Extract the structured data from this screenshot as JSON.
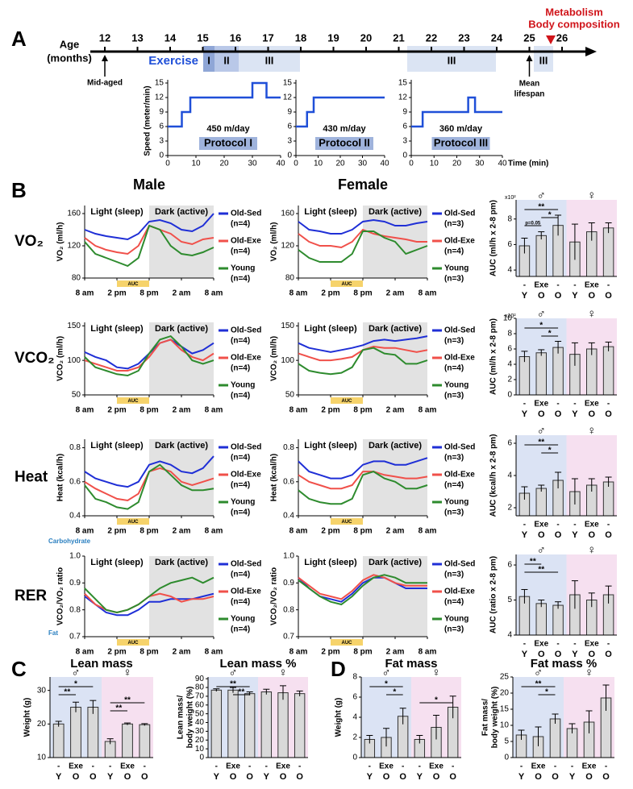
{
  "panel_a": {
    "label": "A",
    "age_label": [
      "Age",
      "(months)"
    ],
    "ages": [
      12,
      13,
      14,
      15,
      16,
      17,
      18,
      19,
      20,
      21,
      22,
      23,
      24,
      25,
      26
    ],
    "mid_aged": "Mid-aged",
    "exercise": "Exercise",
    "phases": [
      "I",
      "II",
      "III",
      "III",
      "III"
    ],
    "mean_lifespan": [
      "Mean",
      "lifespan"
    ],
    "endpoint": [
      "Metabolism",
      "Body composition"
    ],
    "protocols": {
      "ylabel": "Speed (meter/min)",
      "xlabel": "Time (min)",
      "ylim": [
        0,
        15
      ],
      "yticks": [
        0,
        3,
        6,
        9,
        12,
        15
      ],
      "xlim": [
        0,
        40
      ],
      "xticks": [
        0,
        10,
        20,
        30,
        40
      ],
      "items": [
        {
          "distance": "450 m/day",
          "name": "Protocol I",
          "x": [
            0,
            5,
            5,
            8,
            8,
            30,
            30,
            35,
            35,
            40
          ],
          "y": [
            6,
            6,
            9,
            9,
            12,
            12,
            15,
            15,
            12,
            12
          ]
        },
        {
          "distance": "430 m/day",
          "name": "Protocol II",
          "x": [
            0,
            5,
            5,
            8,
            8,
            40
          ],
          "y": [
            6,
            6,
            9,
            9,
            12,
            12
          ]
        },
        {
          "distance": "360 m/day",
          "name": "Protocol III",
          "x": [
            0,
            5,
            5,
            25,
            25,
            28,
            28,
            40
          ],
          "y": [
            6,
            6,
            9,
            9,
            12,
            12,
            9,
            9
          ]
        }
      ]
    }
  },
  "panel_b": {
    "label": "B",
    "sexes": [
      "Male",
      "Female"
    ],
    "periods": [
      "Light (sleep)",
      "Dark (active)"
    ],
    "auc": "AUC",
    "xticks": [
      {
        "value": 0,
        "label": "8 am"
      },
      {
        "value": 6,
        "label": "2 pm"
      },
      {
        "value": 12,
        "label": "8 pm"
      },
      {
        "value": 18,
        "label": "2 am"
      },
      {
        "value": 24,
        "label": "8 am"
      }
    ],
    "hours": [
      0,
      2,
      4,
      6,
      8,
      10,
      12,
      14,
      16,
      18,
      20,
      22,
      24
    ],
    "series_names": [
      "Old-Sed",
      "Old-Exe",
      "Young"
    ],
    "colors": [
      "#1f2fd6",
      "#f0504a",
      "#2e8b2e"
    ],
    "rer_notes": [
      "Carbohydrate",
      "Fat"
    ],
    "rows": [
      {
        "name": "VO₂",
        "ylabel": "VO₂ (ml/h)",
        "ylim": [
          80,
          170
        ],
        "yticks": [
          80,
          120,
          160
        ],
        "male": {
          "n": [
            "(n=4)",
            "(n=4)",
            "(n=4)"
          ],
          "series": [
            [
              140,
              135,
              132,
              130,
              128,
              135,
              150,
              152,
              148,
              140,
              138,
              145,
              160
            ],
            [
              130,
              120,
              115,
              112,
              110,
              120,
              145,
              140,
              135,
              125,
              122,
              128,
              130
            ],
            [
              125,
              110,
              105,
              100,
              95,
              105,
              145,
              140,
              120,
              110,
              108,
              112,
              118
            ]
          ]
        },
        "female": {
          "n": [
            "(n=3)",
            "(n=4)",
            "(n=3)"
          ],
          "series": [
            [
              150,
              140,
              138,
              135,
              135,
              140,
              150,
              152,
              150,
              145,
              145,
              148,
              150
            ],
            [
              135,
              125,
              120,
              120,
              118,
              125,
              140,
              135,
              132,
              130,
              128,
              125,
              125
            ],
            [
              115,
              105,
              100,
              100,
              100,
              110,
              138,
              138,
              130,
              125,
              110,
              115,
              120
            ]
          ]
        },
        "auc_chart": {
          "ylabel": "AUC (ml/h x 2-8 pm)",
          "multiplier": "x10²",
          "ylim": [
            3.5,
            9.5
          ],
          "yticks": [
            4,
            6,
            8
          ],
          "values": [
            5.9,
            6.7,
            7.5,
            6.2,
            7.0,
            7.3
          ],
          "errors": [
            0.6,
            0.3,
            0.8,
            1.4,
            0.7,
            0.4
          ],
          "sig": [
            {
              "pair": [
                0,
                2
              ],
              "label": "**"
            },
            {
              "pair": [
                1,
                2
              ],
              "label": "*"
            },
            {
              "pair": [
                0,
                1
              ],
              "label": "p=0.05"
            }
          ]
        }
      },
      {
        "name": "VCO₂",
        "ylabel": "VCO₂ (ml/h)",
        "ylim": [
          50,
          155
        ],
        "yticks": [
          50,
          100,
          150
        ],
        "male": {
          "n": [
            "(n=4)",
            "(n=4)",
            "(n=4)"
          ],
          "series": [
            [
              112,
              105,
              100,
              90,
              88,
              95,
              110,
              125,
              130,
              120,
              110,
              115,
              125
            ],
            [
              100,
              95,
              90,
              85,
              85,
              90,
              105,
              125,
              130,
              115,
              105,
              100,
              110
            ],
            [
              105,
              90,
              85,
              80,
              78,
              85,
              110,
              130,
              135,
              120,
              100,
              95,
              100
            ]
          ]
        },
        "female": {
          "n": [
            "(n=3)",
            "(n=4)",
            "(n=3)"
          ],
          "series": [
            [
              125,
              118,
              115,
              112,
              115,
              118,
              122,
              128,
              130,
              128,
              130,
              132,
              135
            ],
            [
              110,
              105,
              100,
              100,
              102,
              105,
              115,
              120,
              118,
              118,
              115,
              112,
              115
            ],
            [
              95,
              85,
              82,
              80,
              82,
              90,
              115,
              118,
              110,
              108,
              95,
              95,
              100
            ]
          ]
        },
        "auc_chart": {
          "ylabel": "AUC (ml/h x 2-8 pm)",
          "multiplier": "x10²",
          "ylim": [
            0,
            10
          ],
          "yticks": [
            0,
            2,
            4,
            6,
            8,
            10
          ],
          "values": [
            5.0,
            5.5,
            6.2,
            5.3,
            6.0,
            6.3
          ],
          "errors": [
            0.7,
            0.4,
            0.8,
            1.5,
            0.8,
            0.6
          ],
          "sig": [
            {
              "pair": [
                0,
                2
              ],
              "label": "*"
            },
            {
              "pair": [
                1,
                2
              ],
              "label": "*"
            }
          ]
        }
      },
      {
        "name": "Heat",
        "ylabel": "Heat (kcal/h)",
        "ylim": [
          0.4,
          0.85
        ],
        "yticks": [
          0.4,
          0.6,
          0.8
        ],
        "male": {
          "n": [
            "(n=4)",
            "(n=4)",
            "(n=4)"
          ],
          "series": [
            [
              0.66,
              0.62,
              0.6,
              0.58,
              0.57,
              0.6,
              0.7,
              0.72,
              0.7,
              0.66,
              0.65,
              0.68,
              0.75
            ],
            [
              0.6,
              0.56,
              0.53,
              0.5,
              0.49,
              0.53,
              0.66,
              0.68,
              0.66,
              0.6,
              0.58,
              0.6,
              0.62
            ],
            [
              0.58,
              0.5,
              0.48,
              0.45,
              0.44,
              0.48,
              0.66,
              0.7,
              0.64,
              0.58,
              0.55,
              0.55,
              0.56
            ]
          ]
        },
        "female": {
          "n": [
            "(n=3)",
            "(n=4)",
            "(n=3)"
          ],
          "series": [
            [
              0.72,
              0.66,
              0.64,
              0.62,
              0.62,
              0.64,
              0.7,
              0.72,
              0.72,
              0.7,
              0.7,
              0.72,
              0.74
            ],
            [
              0.64,
              0.6,
              0.58,
              0.56,
              0.56,
              0.58,
              0.66,
              0.66,
              0.64,
              0.63,
              0.62,
              0.62,
              0.63
            ],
            [
              0.55,
              0.5,
              0.48,
              0.47,
              0.47,
              0.5,
              0.64,
              0.66,
              0.62,
              0.6,
              0.56,
              0.56,
              0.58
            ]
          ]
        },
        "auc_chart": {
          "ylabel": "AUC (kcal/h x 2-8 pm)",
          "ylim": [
            1.5,
            6.5
          ],
          "yticks": [
            2,
            4,
            6
          ],
          "values": [
            2.9,
            3.2,
            3.7,
            3.0,
            3.4,
            3.6
          ],
          "errors": [
            0.4,
            0.2,
            0.5,
            0.8,
            0.4,
            0.3
          ],
          "sig": [
            {
              "pair": [
                0,
                2
              ],
              "label": "**"
            },
            {
              "pair": [
                1,
                2
              ],
              "label": "*"
            }
          ]
        }
      },
      {
        "name": "RER",
        "ylabel": "VCO₂/VO₂ ratio",
        "ylim": [
          0.7,
          1.0
        ],
        "yticks": [
          0.7,
          0.8,
          0.9,
          {
            "value": 1,
            "label": "1.0"
          }
        ],
        "male": {
          "n": [
            "(n=4)",
            "(n=4)",
            "(n=4)"
          ],
          "series": [
            [
              0.85,
              0.82,
              0.79,
              0.78,
              0.78,
              0.8,
              0.83,
              0.83,
              0.84,
              0.84,
              0.84,
              0.85,
              0.86
            ],
            [
              0.86,
              0.82,
              0.8,
              0.79,
              0.8,
              0.82,
              0.85,
              0.86,
              0.85,
              0.83,
              0.84,
              0.84,
              0.85
            ],
            [
              0.88,
              0.84,
              0.8,
              0.79,
              0.8,
              0.82,
              0.85,
              0.88,
              0.9,
              0.91,
              0.92,
              0.9,
              0.92
            ]
          ]
        },
        "female": {
          "n": [
            "(n=3)",
            "(n=4)",
            "(n=3)"
          ],
          "series": [
            [
              0.92,
              0.88,
              0.85,
              0.84,
              0.83,
              0.86,
              0.9,
              0.92,
              0.92,
              0.9,
              0.88,
              0.88,
              0.88
            ],
            [
              0.92,
              0.89,
              0.86,
              0.85,
              0.84,
              0.87,
              0.91,
              0.93,
              0.92,
              0.9,
              0.89,
              0.89,
              0.89
            ],
            [
              0.91,
              0.88,
              0.85,
              0.83,
              0.82,
              0.85,
              0.89,
              0.92,
              0.93,
              0.92,
              0.9,
              0.9,
              0.9
            ]
          ]
        },
        "auc_chart": {
          "ylabel": "AUC (ratio x 2-8 pm)",
          "ylim": [
            4,
            6.3
          ],
          "yticks": [
            4,
            5,
            6
          ],
          "values": [
            5.1,
            4.9,
            4.85,
            5.15,
            5.0,
            5.15
          ],
          "errors": [
            0.2,
            0.1,
            0.1,
            0.4,
            0.2,
            0.25
          ],
          "sig": [
            {
              "pair": [
                0,
                1
              ],
              "label": "**"
            },
            {
              "pair": [
                0,
                2
              ],
              "label": "**"
            }
          ]
        }
      }
    ]
  },
  "bar_common": {
    "top": [
      "-",
      "Exe",
      "-",
      "-",
      "Exe",
      "-"
    ],
    "bottom": [
      "Y",
      "O",
      "O",
      "Y",
      "O",
      "O"
    ],
    "symbols": [
      "♂",
      "♀"
    ]
  },
  "panel_c": {
    "label": "C",
    "charts": [
      {
        "title": "Lean mass",
        "ylabel": "Weight (g)",
        "ylim": [
          10,
          34
        ],
        "yticks": [
          10,
          20,
          30
        ],
        "values": [
          20,
          25,
          25,
          14.8,
          20,
          19.8
        ],
        "errors": [
          0.8,
          1.5,
          2,
          0.8,
          0.3,
          0.3
        ],
        "sig": [
          {
            "pair": [
              0,
              2
            ],
            "label": "*"
          },
          {
            "pair": [
              0,
              1
            ],
            "label": "**"
          },
          {
            "pair": [
              3,
              5
            ],
            "label": "**"
          },
          {
            "pair": [
              3,
              4
            ],
            "label": "**"
          }
        ]
      },
      {
        "title": "Lean mass %",
        "ylabel": [
          "Lean mass/",
          "body weight (%)"
        ],
        "ylim": [
          0,
          92
        ],
        "yticks": [
          0,
          10,
          20,
          30,
          40,
          50,
          60,
          70,
          80,
          90
        ],
        "values": [
          77,
          77,
          73,
          75,
          74,
          73
        ],
        "errors": [
          1.5,
          3,
          2,
          3,
          8,
          3
        ],
        "sig": [
          {
            "pair": [
              0,
              2
            ],
            "label": "**"
          },
          {
            "pair": [
              1,
              2
            ],
            "label": "**"
          }
        ]
      }
    ]
  },
  "panel_d": {
    "label": "D",
    "charts": [
      {
        "title": "Fat mass",
        "ylabel": "Weight (g)",
        "ylim": [
          0,
          8
        ],
        "yticks": [
          0,
          2,
          4,
          6,
          8
        ],
        "values": [
          1.8,
          2.0,
          4.1,
          1.8,
          3.0,
          5.0
        ],
        "errors": [
          0.4,
          0.9,
          0.8,
          0.4,
          1.2,
          1.1
        ],
        "sig": [
          {
            "pair": [
              0,
              2
            ],
            "label": "*"
          },
          {
            "pair": [
              1,
              2
            ],
            "label": "*"
          },
          {
            "pair": [
              3,
              5
            ],
            "label": "*"
          }
        ]
      },
      {
        "title": "Fat mass %",
        "ylabel": [
          "Fat mass/",
          "body weight (%)"
        ],
        "ylim": [
          0,
          25
        ],
        "yticks": [
          0,
          5,
          10,
          15,
          20,
          25
        ],
        "values": [
          7,
          6.5,
          12,
          9,
          11,
          18.5
        ],
        "errors": [
          1.5,
          3,
          1.5,
          1.5,
          3.5,
          4
        ],
        "sig": [
          {
            "pair": [
              0,
              2
            ],
            "label": "**"
          },
          {
            "pair": [
              1,
              2
            ],
            "label": "*"
          }
        ]
      }
    ]
  }
}
